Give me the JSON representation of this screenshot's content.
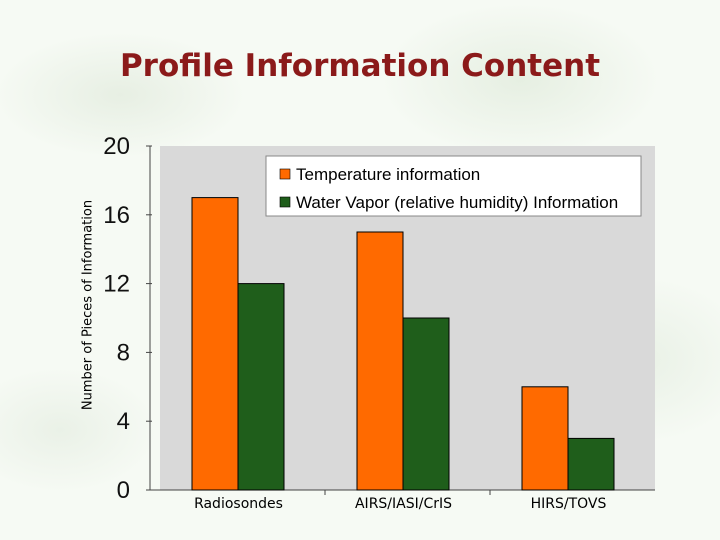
{
  "slide": {
    "title": "Profile Information Content"
  },
  "colors": {
    "temperature": "#ff6a00",
    "water_vapor": "#1f5e1b",
    "plot_background": "#d9d9d9",
    "title": "#8b1a1a"
  },
  "chart_data": {
    "type": "bar",
    "ylabel": "Number of Pieces of Information",
    "xlabel": "",
    "ylim": [
      0,
      20
    ],
    "yticks": [
      "0",
      "4",
      "8",
      "12",
      "16",
      "20"
    ],
    "categories": [
      "Radiosondes",
      "AIRS/IASI/CrIS",
      "HIRS/TOVS"
    ],
    "series": [
      {
        "name": "Temperature information",
        "values": [
          17,
          15,
          6
        ]
      },
      {
        "name": "Water Vapor (relative humidity) Information",
        "values": [
          12,
          10,
          3
        ]
      }
    ],
    "legend_position": "top-right",
    "grid": false
  }
}
